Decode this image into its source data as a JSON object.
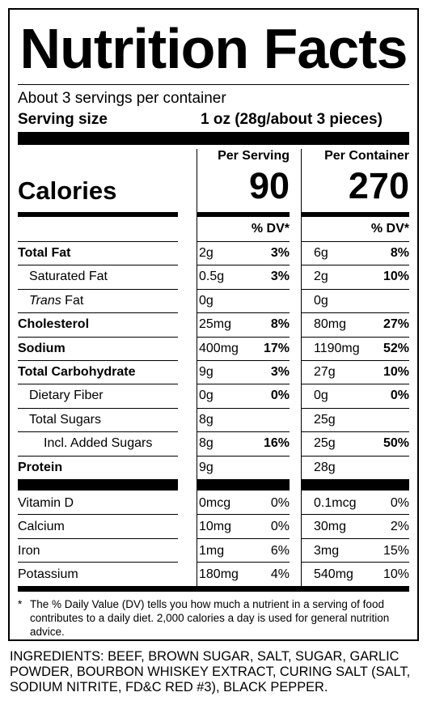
{
  "title": "Nutrition Facts",
  "servings_per_container": "About 3 servings per container",
  "serving_size_label": "Serving size",
  "serving_size_value": "1 oz (28g/about 3 pieces)",
  "col_serving_header": "Per Serving",
  "col_container_header": "Per Container",
  "calories_label": "Calories",
  "calories_serving": "90",
  "calories_container": "270",
  "dv_header": "% DV*",
  "nutrients": [
    {
      "name": "Total Fat",
      "s_amt": "2g",
      "s_dv": "3%",
      "c_amt": "6g",
      "c_dv": "8%"
    },
    {
      "name": "Saturated Fat",
      "s_amt": "0.5g",
      "s_dv": "3%",
      "c_amt": "2g",
      "c_dv": "10%"
    },
    {
      "name_italic": "Trans",
      "name_rest": " Fat",
      "s_amt": "0g",
      "c_amt": "0g"
    },
    {
      "name": "Cholesterol",
      "s_amt": "25mg",
      "s_dv": "8%",
      "c_amt": "80mg",
      "c_dv": "27%"
    },
    {
      "name": "Sodium",
      "s_amt": "400mg",
      "s_dv": "17%",
      "c_amt": "1190mg",
      "c_dv": "52%"
    },
    {
      "name": "Total Carbohydrate",
      "s_amt": "9g",
      "s_dv": "3%",
      "c_amt": "27g",
      "c_dv": "10%"
    },
    {
      "name": "Dietary Fiber",
      "s_amt": "0g",
      "s_dv": "0%",
      "c_amt": "0g",
      "c_dv": "0%"
    },
    {
      "name": "Total Sugars",
      "s_amt": "8g",
      "c_amt": "25g"
    },
    {
      "name": "Incl. Added Sugars",
      "s_amt": "8g",
      "s_dv": "16%",
      "c_amt": "25g",
      "c_dv": "50%"
    },
    {
      "name": "Protein",
      "s_amt": "9g",
      "c_amt": "28g"
    }
  ],
  "vitamins": [
    {
      "name": "Vitamin D",
      "s_amt": "0mcg",
      "s_dv": "0%",
      "c_amt": "0.1mcg",
      "c_dv": "0%"
    },
    {
      "name": "Calcium",
      "s_amt": "10mg",
      "s_dv": "0%",
      "c_amt": "30mg",
      "c_dv": "2%"
    },
    {
      "name": "Iron",
      "s_amt": "1mg",
      "s_dv": "6%",
      "c_amt": "3mg",
      "c_dv": "15%"
    },
    {
      "name": "Potassium",
      "s_amt": "180mg",
      "s_dv": "4%",
      "c_amt": "540mg",
      "c_dv": "10%"
    }
  ],
  "footnote": "* The % Daily Value (DV) tells you how much a nutrient in a serving of food contributes to a daily diet. 2,000 calories a day is used for general nutrition advice.",
  "ingredients": "INGREDIENTS: BEEF, BROWN SUGAR, SALT, SUGAR, GARLIC POWDER, BOURBON WHISKEY EXTRACT, CURING SALT (SALT, SODIUM NITRITE, FD&C RED #3), BLACK PEPPER."
}
